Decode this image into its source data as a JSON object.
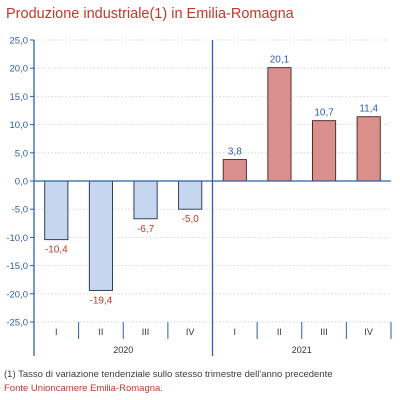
{
  "title": "Produzione industriale(1) in Emilia-Romagna",
  "footnote": "(1) Tasso di variazione tendenziale sullo stesso trimestre dell'anno precedente",
  "source": "Fonte Unioncamere Emilia-Romagna.",
  "colors": {
    "title": "#c0392b",
    "bar_negative_fill": "#c6d6ee",
    "bar_negative_stroke": "#1c2f4f",
    "bar_positive_fill": "#d9908c",
    "bar_positive_stroke": "#4a1f1f",
    "label_negative": "#c0392b",
    "label_positive": "#2f5da8",
    "axis": "#2f5da8",
    "grid": "#d0d0d0"
  },
  "chart_data": {
    "type": "bar",
    "categories": [
      "I",
      "II",
      "III",
      "IV",
      "I",
      "II",
      "III",
      "IV"
    ],
    "groups": [
      {
        "label": "2020",
        "count": 4
      },
      {
        "label": "2021",
        "count": 4
      }
    ],
    "values": [
      -10.4,
      -19.4,
      -6.7,
      -5.0,
      3.8,
      20.1,
      10.7,
      11.4
    ],
    "data_labels": [
      "-10,4",
      "-19,4",
      "-6,7",
      "-5,0",
      "3,8",
      "20,1",
      "10,7",
      "11,4"
    ],
    "yticks": [
      "25,0",
      "20,0",
      "15,0",
      "10,0",
      "5,0",
      "0,0",
      "-5,0",
      "-10,0",
      "-15,0",
      "-20,0",
      "-25,0"
    ],
    "ylim": [
      -25,
      25
    ],
    "ystep": 5,
    "grid": true
  }
}
